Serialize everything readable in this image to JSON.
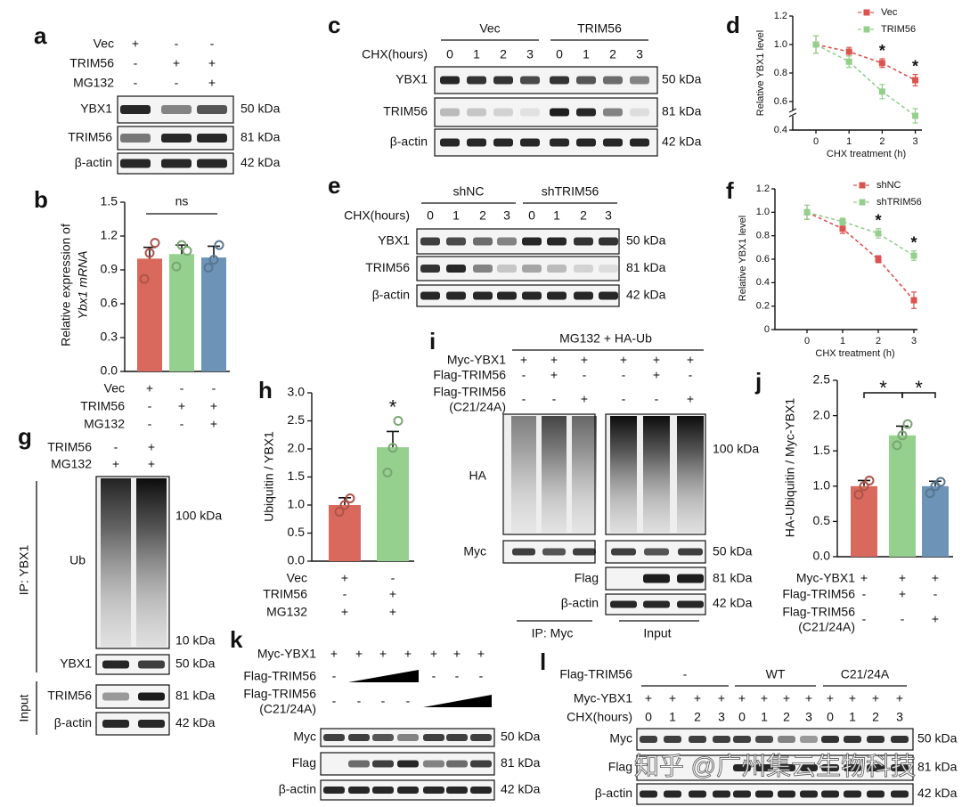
{
  "blots": {
    "a": {
      "panel": "a",
      "conditions": [
        {
          "name": "Vec",
          "signs": [
            "+",
            "-",
            "-"
          ]
        },
        {
          "name": "TRIM56",
          "signs": [
            "-",
            "+",
            "+"
          ]
        },
        {
          "name": "MG132",
          "signs": [
            "-",
            "-",
            "+"
          ]
        }
      ],
      "bands": [
        {
          "name": "YBX1",
          "size": "50 kDa"
        },
        {
          "name": "TRIM56",
          "size": "81 kDa"
        },
        {
          "name": "β-actin",
          "size": "42 kDa"
        }
      ]
    },
    "c": {
      "panel": "c",
      "groups": [
        "Vec",
        "TRIM56"
      ],
      "time_label": "CHX(hours)",
      "times": [
        "0",
        "1",
        "2",
        "3",
        "0",
        "1",
        "2",
        "3"
      ],
      "bands": [
        {
          "name": "YBX1",
          "size": "50 kDa"
        },
        {
          "name": "TRIM56",
          "size": "81 kDa"
        },
        {
          "name": "β-actin",
          "size": "42 kDa"
        }
      ]
    },
    "e": {
      "panel": "e",
      "groups": [
        "shNC",
        "shTRIM56"
      ],
      "time_label": "CHX(hours)",
      "times": [
        "0",
        "1",
        "2",
        "3",
        "0",
        "1",
        "2",
        "3"
      ],
      "bands": [
        {
          "name": "YBX1",
          "size": "50 kDa"
        },
        {
          "name": "TRIM56",
          "size": "81 kDa"
        },
        {
          "name": "β-actin",
          "size": "42 kDa"
        }
      ]
    },
    "g": {
      "panel": "g",
      "conditions": [
        {
          "name": "TRIM56",
          "signs": [
            "-",
            "+"
          ]
        },
        {
          "name": "MG132",
          "signs": [
            "+",
            "+"
          ]
        }
      ],
      "sections": [
        "IP: YBX1",
        "Input"
      ],
      "bands": [
        {
          "name": "Ub",
          "size": "100 kDa",
          "size_low": "10 kDa"
        },
        {
          "name": "YBX1",
          "size": "50 kDa"
        },
        {
          "name": "TRIM56",
          "size": "81 kDa"
        },
        {
          "name": "β-actin",
          "size": "42 kDa"
        }
      ]
    },
    "i": {
      "panel": "i",
      "header": "MG132 + HA-Ub",
      "conditions": [
        {
          "name": "Myc-YBX1",
          "signs": [
            "+",
            "+",
            "+",
            "+",
            "+",
            "+"
          ]
        },
        {
          "name": "Flag-TRIM56",
          "signs": [
            "-",
            "+",
            "-",
            "-",
            "+",
            "-"
          ]
        },
        {
          "name": [
            "Flag-TRIM56",
            "(C21/24A)"
          ],
          "signs": [
            "-",
            "-",
            "+",
            "-",
            "-",
            "+"
          ]
        }
      ],
      "sections": [
        "IP: Myc",
        "Input"
      ],
      "bands": [
        {
          "name": "HA",
          "size": "100 kDa"
        },
        {
          "name": "Myc",
          "size": "50 kDa"
        },
        {
          "name": "Flag",
          "size": "81 kDa"
        },
        {
          "name": "β-actin",
          "size": "42 kDa"
        }
      ]
    },
    "k": {
      "panel": "k",
      "conditions": [
        {
          "name": "Myc-YBX1",
          "signs": [
            "+",
            "+",
            "+",
            "+",
            "+",
            "+",
            "+"
          ]
        },
        {
          "name": "Flag-TRIM56",
          "signs": [
            "-",
            null,
            null,
            null,
            "-",
            "-",
            "-"
          ]
        },
        {
          "name": [
            "Flag-TRIM56",
            "(C21/24A)"
          ],
          "signs": [
            "-",
            "-",
            "-",
            "-",
            null,
            null,
            null
          ]
        }
      ],
      "bands": [
        {
          "name": "Myc",
          "size": "50 kDa"
        },
        {
          "name": "Flag",
          "size": "81 kDa"
        },
        {
          "name": "β-actin",
          "size": "42 kDa"
        }
      ]
    },
    "l": {
      "panel": "l",
      "group_label": "Flag-TRIM56",
      "groups": [
        "-",
        "WT",
        "C21/24A"
      ],
      "conditions": [
        {
          "name": "Myc-YBX1",
          "signs": [
            "+",
            "+",
            "+",
            "+",
            "+",
            "+",
            "+",
            "+",
            "+",
            "+",
            "+",
            "+"
          ]
        }
      ],
      "time_label": "CHX(hours)",
      "times": [
        "0",
        "1",
        "2",
        "3",
        "0",
        "1",
        "2",
        "3",
        "0",
        "1",
        "2",
        "3"
      ],
      "bands": [
        {
          "name": "Myc",
          "size": "50 kDa"
        },
        {
          "name": "Flag",
          "size": "81 kDa"
        },
        {
          "name": "β-actin",
          "size": "42 kDa"
        }
      ]
    }
  },
  "watermark": "知乎 @广州集云生物科技",
  "chart_data": [
    {
      "type": "bar",
      "panel": "b",
      "ylabel": [
        "Relative expression of",
        "Ybx1 mRNA"
      ],
      "values": [
        1.0,
        1.04,
        1.01
      ],
      "errors": [
        0.1,
        0.08,
        0.1
      ],
      "points": [
        [
          0.82,
          1.05,
          1.14
        ],
        [
          0.93,
          1.12,
          1.07
        ],
        [
          0.92,
          0.99,
          1.12
        ]
      ],
      "colors": [
        "#d9695c",
        "#96d08f",
        "#6d94b7"
      ],
      "ylim": [
        0,
        1.5
      ],
      "yticks": [
        {
          "value": 0,
          "label": "0.0"
        },
        0.3,
        0.6,
        0.9,
        1.2,
        1.5
      ],
      "annotation": "ns",
      "conditions": [
        {
          "name": "Vec",
          "signs": [
            "+",
            "-",
            "-"
          ]
        },
        {
          "name": "TRIM56",
          "signs": [
            "-",
            "+",
            "+"
          ]
        },
        {
          "name": "MG132",
          "signs": [
            "-",
            "-",
            "+"
          ]
        }
      ]
    },
    {
      "type": "line",
      "panel": "d",
      "xlabel": "CHX treatment (h)",
      "ylabel": "Relative YBX1 level",
      "x": [
        0,
        1,
        2,
        3
      ],
      "series": [
        {
          "name": "Vec",
          "color": "#d9534f",
          "values": [
            1.0,
            0.95,
            0.87,
            0.75
          ],
          "errors": [
            0.06,
            0.03,
            0.03,
            0.04
          ]
        },
        {
          "name": "TRIM56",
          "color": "#94cf8e",
          "values": [
            1.0,
            0.88,
            0.67,
            0.5
          ],
          "errors": [
            0.06,
            0.04,
            0.05,
            0.05
          ]
        }
      ],
      "significance": [
        null,
        null,
        "*",
        "*"
      ],
      "xlim": [
        -0.7,
        3.2
      ],
      "xticks": [
        0,
        1,
        2,
        3
      ],
      "ylim": [
        0.4,
        1.2
      ],
      "yticks": [
        0.4,
        0.6,
        0.8,
        {
          "value": 1,
          "label": "1.0"
        },
        1.2
      ],
      "legend": "upper right"
    },
    {
      "type": "line",
      "panel": "f",
      "xlabel": "CHX treatment (h)",
      "ylabel": "Relative YBX1 level",
      "x": [
        0,
        1,
        2,
        3
      ],
      "series": [
        {
          "name": "shNC",
          "color": "#d9534f",
          "values": [
            1.0,
            0.86,
            0.6,
            0.25
          ],
          "errors": [
            0.06,
            0.04,
            0.03,
            0.07
          ]
        },
        {
          "name": "shTRIM56",
          "color": "#94cf8e",
          "values": [
            1.0,
            0.92,
            0.82,
            0.63
          ],
          "errors": [
            0.06,
            0.03,
            0.04,
            0.04
          ]
        }
      ],
      "significance": [
        null,
        null,
        "*",
        "*"
      ],
      "xlim": [
        -0.9,
        3.1
      ],
      "xticks": [
        0,
        1,
        2,
        3
      ],
      "ylim": [
        0,
        1.2
      ],
      "yticks": [
        0,
        0.2,
        0.4,
        0.6,
        0.8,
        {
          "value": 1,
          "label": "1.0"
        },
        1.2
      ],
      "legend": "upper right"
    },
    {
      "type": "bar",
      "panel": "h",
      "ylabel": "Ubiquitin / YBX1",
      "values": [
        1.0,
        2.03
      ],
      "errors": [
        0.13,
        0.28
      ],
      "points": [
        [
          0.88,
          1.0,
          1.12
        ],
        [
          1.58,
          2.02,
          2.5
        ]
      ],
      "colors": [
        "#d9695c",
        "#96d08f"
      ],
      "ylim": [
        0,
        3
      ],
      "yticks": [
        {
          "value": 0,
          "label": "0.0"
        },
        0.5,
        {
          "value": 1,
          "label": "1.0"
        },
        1.5,
        {
          "value": 2,
          "label": "2.0"
        },
        2.5,
        {
          "value": 3,
          "label": "3.0"
        }
      ],
      "significance": [
        null,
        "*"
      ],
      "conditions": [
        {
          "name": "Vec",
          "signs": [
            "+",
            "-"
          ]
        },
        {
          "name": "TRIM56",
          "signs": [
            "-",
            "+"
          ]
        },
        {
          "name": "MG132",
          "signs": [
            "+",
            "+"
          ]
        }
      ]
    },
    {
      "type": "bar",
      "panel": "j",
      "ylabel": "HA-Ubiquitin / Myc-YBX1",
      "values": [
        1.0,
        1.72,
        1.0
      ],
      "errors": [
        0.08,
        0.13,
        0.07
      ],
      "points": [
        [
          0.88,
          1.0,
          1.08
        ],
        [
          1.58,
          1.72,
          1.88
        ],
        [
          0.9,
          1.0,
          1.06
        ]
      ],
      "colors": [
        "#d9695c",
        "#96d08f",
        "#6d94b7"
      ],
      "ylim": [
        0,
        2.5
      ],
      "yticks": [
        {
          "value": 0,
          "label": "0.0"
        },
        0.5,
        {
          "value": 1,
          "label": "1.0"
        },
        1.5,
        {
          "value": 2,
          "label": "2.0"
        },
        2.5
      ],
      "brackets": [
        "*",
        "*"
      ],
      "conditions": [
        {
          "name": "Myc-YBX1",
          "signs": [
            "+",
            "+",
            "+"
          ]
        },
        {
          "name": "Flag-TRIM56",
          "signs": [
            "-",
            "+",
            "-"
          ]
        },
        {
          "name": [
            "Flag-TRIM56",
            "(C21/24A)"
          ],
          "signs": [
            "-",
            "-",
            "+"
          ]
        }
      ]
    }
  ]
}
